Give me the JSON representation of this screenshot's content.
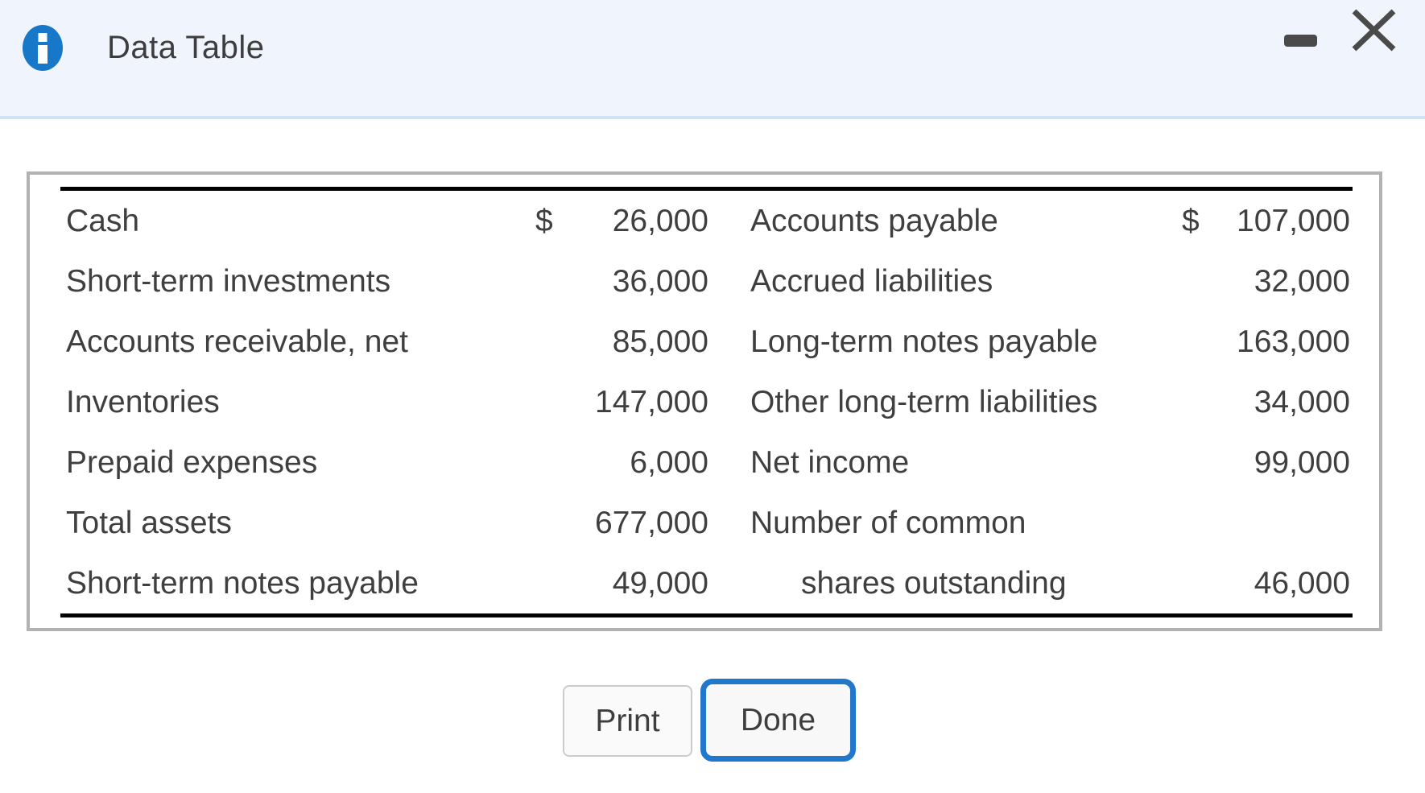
{
  "dialog": {
    "title": "Data Table"
  },
  "table": {
    "rows": [
      {
        "left": {
          "label": "Cash",
          "dollar": "$",
          "value": "26,000"
        },
        "right": {
          "label": "Accounts payable",
          "dollar": "$",
          "value": "107,000",
          "indent": false
        }
      },
      {
        "left": {
          "label": "Short-term investments",
          "dollar": "",
          "value": "36,000"
        },
        "right": {
          "label": "Accrued liabilities",
          "dollar": "",
          "value": "32,000",
          "indent": false
        }
      },
      {
        "left": {
          "label": "Accounts receivable, net",
          "dollar": "",
          "value": "85,000"
        },
        "right": {
          "label": "Long-term notes payable",
          "dollar": "",
          "value": "163,000",
          "indent": false
        }
      },
      {
        "left": {
          "label": "Inventories",
          "dollar": "",
          "value": "147,000"
        },
        "right": {
          "label": "Other long-term liabilities",
          "dollar": "",
          "value": "34,000",
          "indent": false
        }
      },
      {
        "left": {
          "label": "Prepaid expenses",
          "dollar": "",
          "value": "6,000"
        },
        "right": {
          "label": "Net income",
          "dollar": "",
          "value": "99,000",
          "indent": false
        }
      },
      {
        "left": {
          "label": "Total assets",
          "dollar": "",
          "value": "677,000"
        },
        "right": {
          "label": "Number of common",
          "dollar": "",
          "value": "",
          "indent": false
        }
      },
      {
        "left": {
          "label": "Short-term notes payable",
          "dollar": "",
          "value": "49,000"
        },
        "right": {
          "label": "shares outstanding",
          "dollar": "",
          "value": "46,000",
          "indent": true
        }
      }
    ]
  },
  "footer": {
    "print_label": "Print",
    "done_label": "Done"
  },
  "colors": {
    "header_bg": "#eff4fd",
    "header_divider": "#d0e3f7",
    "info_icon_blue": "#1778c9",
    "done_border_blue": "#2177cb",
    "text": "#3f3f3f",
    "panel_border": "#b2b2b2",
    "table_rule": "#010101",
    "window_control": "#4a4a4a"
  }
}
